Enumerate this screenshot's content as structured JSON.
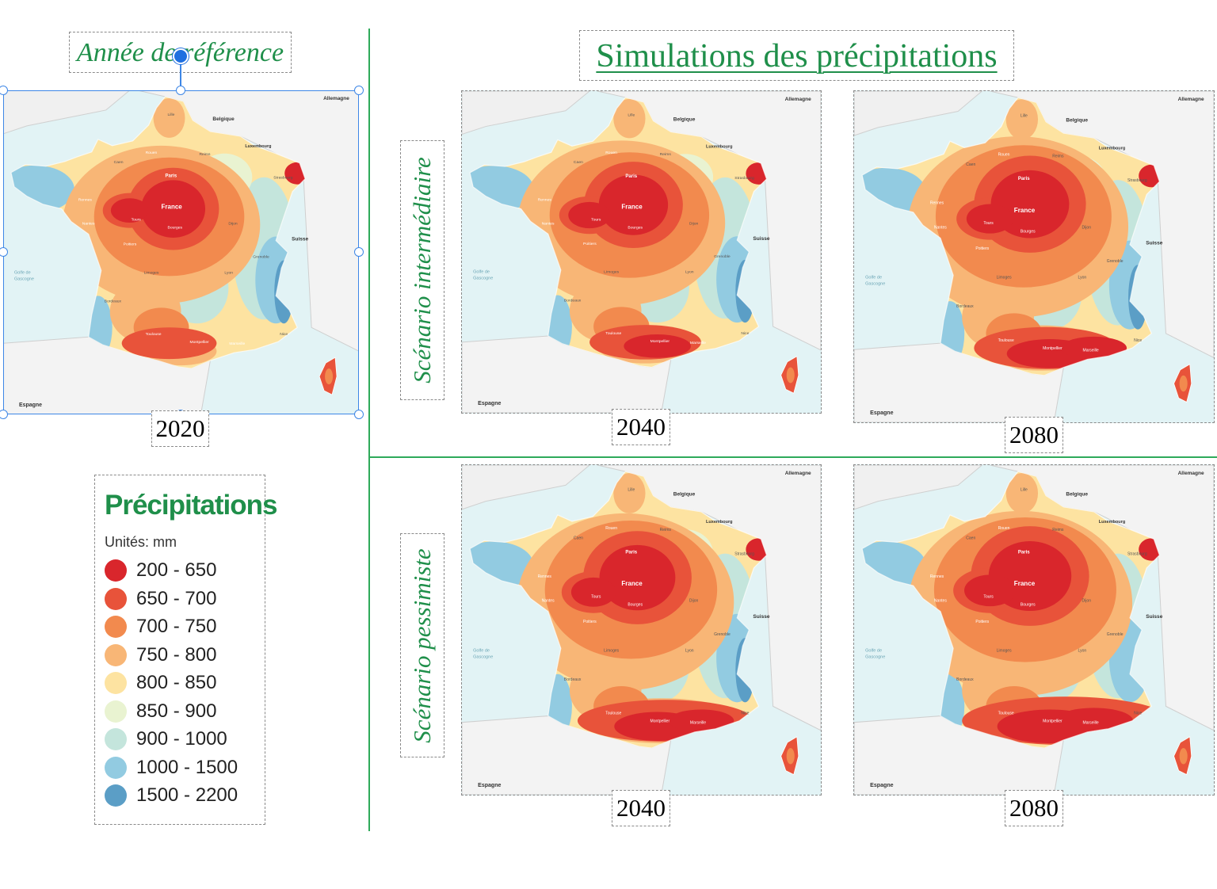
{
  "reference": {
    "title": "Année de référence",
    "year": "2020"
  },
  "main_title": "Simulations des précipitations",
  "scenarios": [
    {
      "label": "Scénario intermédiaire",
      "years": [
        "2040",
        "2080"
      ]
    },
    {
      "label": "Scénario pessimiste",
      "years": [
        "2040",
        "2080"
      ]
    }
  ],
  "legend": {
    "title": "Précipitations",
    "units": "Unités: mm",
    "items": [
      {
        "label": "200 - 650",
        "color": "#d9262c"
      },
      {
        "label": "650 - 700",
        "color": "#e8533a"
      },
      {
        "label": "700 - 750",
        "color": "#f28a4e"
      },
      {
        "label": "750 - 800",
        "color": "#f8b676"
      },
      {
        "label": "800 - 850",
        "color": "#fde3a1"
      },
      {
        "label": "850 - 900",
        "color": "#e9f3d1"
      },
      {
        "label": "900 - 1000",
        "color": "#c4e5dc"
      },
      {
        "label": "1000 - 1500",
        "color": "#92cbe1"
      },
      {
        "label": "1500 - 2200",
        "color": "#5b9ec6"
      }
    ]
  },
  "map_labels": {
    "country": "France",
    "cities": [
      "Paris",
      "Rennes",
      "Nantes",
      "Tours",
      "Bourges",
      "Poitiers",
      "Limoges",
      "Bordeaux",
      "Toulouse",
      "Montpellier",
      "Marseille",
      "Lyon",
      "Dijon",
      "Grenoble",
      "Rouen",
      "Caen",
      "Lille",
      "Reims",
      "Strasbourg",
      "Nice"
    ],
    "neighbors": [
      "Belgique",
      "Espagne",
      "Suisse",
      "Allemagne",
      "Luxembourg"
    ],
    "sea": "Golfe de Gascogne"
  }
}
